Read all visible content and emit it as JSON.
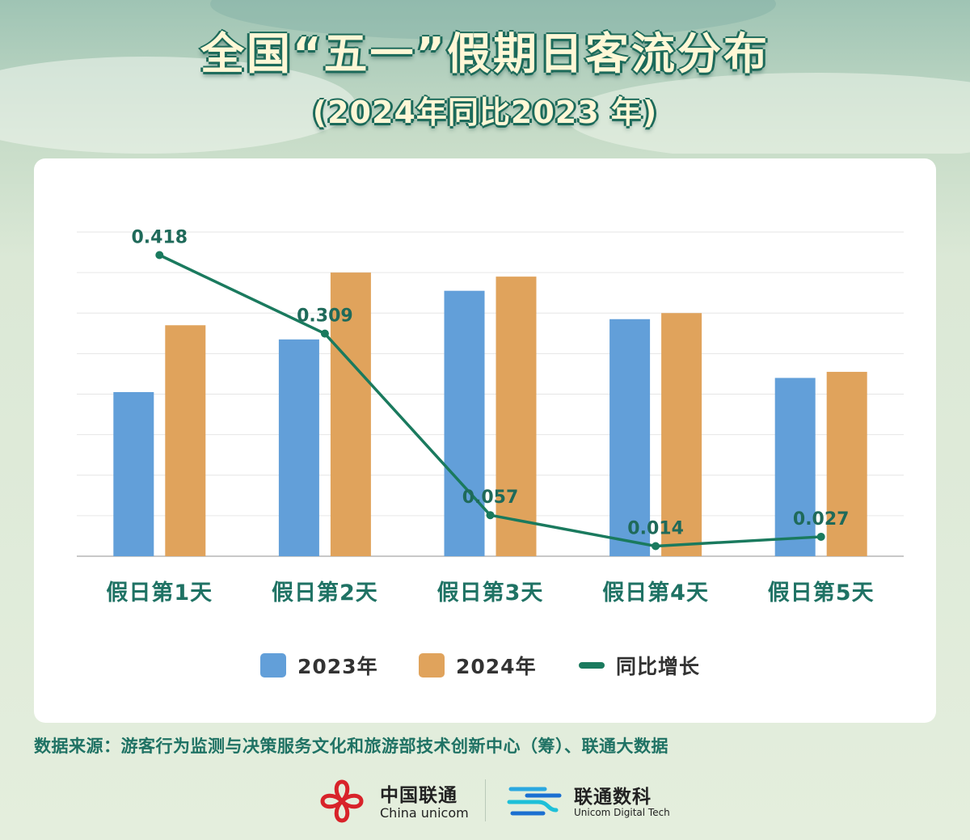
{
  "header": {
    "title": "全国“五一”假期日客流分布",
    "subtitle": "(2024年同比2023 年)"
  },
  "chart_data": {
    "type": "bar",
    "categories": [
      "假日第1天",
      "假日第2天",
      "假日第3天",
      "假日第4天",
      "假日第5天"
    ],
    "series": [
      {
        "name": "2023年",
        "kind": "bar",
        "color": "#629fd9",
        "values": [
          4.05,
          5.35,
          6.55,
          5.85,
          4.4
        ]
      },
      {
        "name": "2024年",
        "kind": "bar",
        "color": "#e0a35c",
        "values": [
          5.7,
          7.0,
          6.9,
          6.0,
          4.55
        ]
      },
      {
        "name": "同比增长",
        "kind": "line",
        "color": "#1a7a5e",
        "values": [
          0.418,
          0.309,
          0.057,
          0.014,
          0.027
        ],
        "labels": [
          "0.418",
          "0.309",
          "0.057",
          "0.014",
          "0.027"
        ]
      }
    ],
    "bar_ylim": [
      0,
      8
    ],
    "line_ylim": [
      0,
      0.45
    ],
    "gridlines": 8,
    "y_tick_labels_shown": false,
    "legend_position": "bottom"
  },
  "footer": {
    "source": "数据来源：游客行为监测与决策服务文化和旅游部技术创新中心（筹）、联通大数据",
    "logo_unicom_cn": "中国联通",
    "logo_unicom_en": "China unicom",
    "logo_digital_cn": "联通数科",
    "logo_digital_en": "Unicom Digital Tech"
  }
}
